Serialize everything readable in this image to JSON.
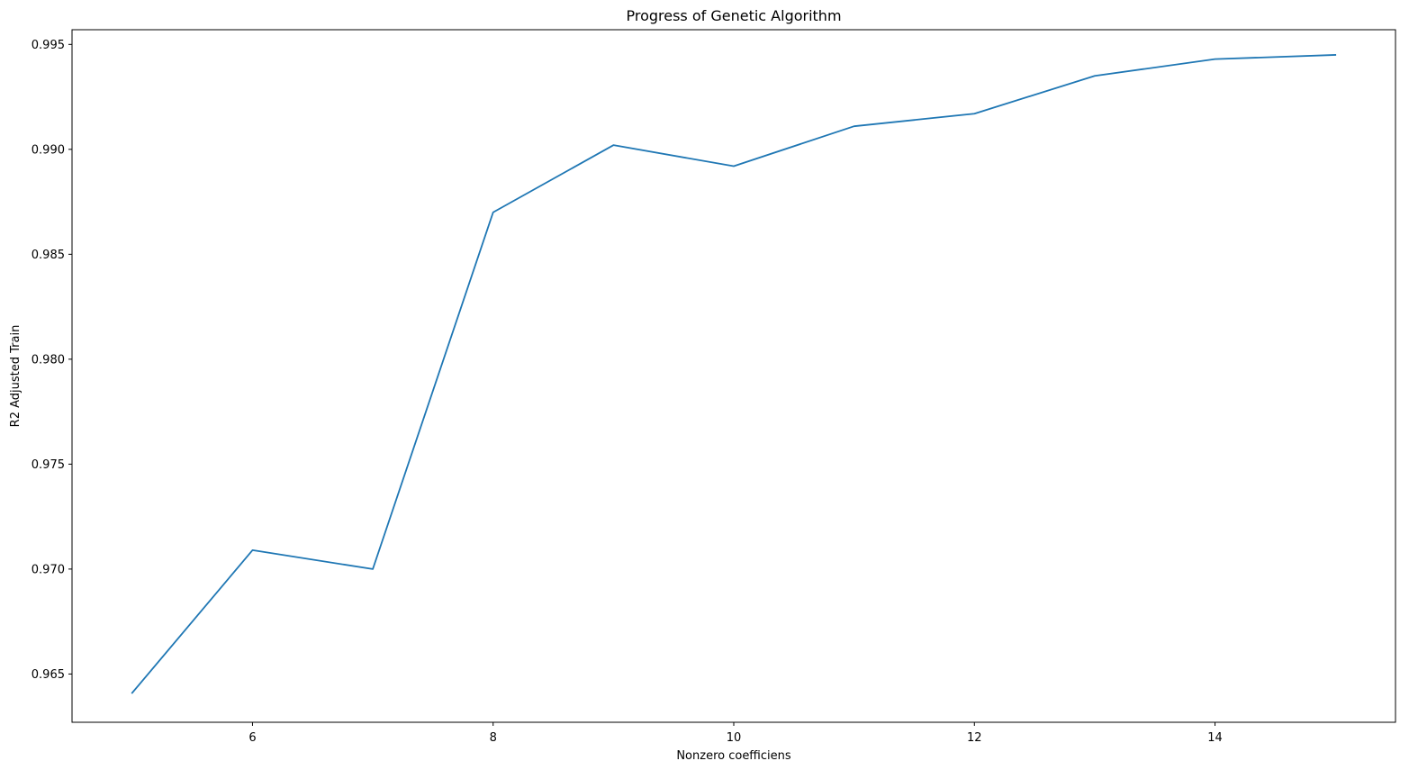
{
  "chart_data": {
    "type": "line",
    "title": "Progress of Genetic Algorithm",
    "xlabel": "Nonzero coefficiens",
    "ylabel": "R2 Adjusted Train",
    "xlim": [
      4.5,
      15.5
    ],
    "ylim": [
      0.9627,
      0.9957
    ],
    "xticks": [
      6,
      8,
      10,
      12,
      14
    ],
    "xtick_labels": [
      "6",
      "8",
      "10",
      "12",
      "14"
    ],
    "yticks": [
      0.965,
      0.97,
      0.975,
      0.98,
      0.985,
      0.99,
      0.995
    ],
    "ytick_labels": [
      "0.965",
      "0.970",
      "0.975",
      "0.980",
      "0.985",
      "0.990",
      "0.995"
    ],
    "grid": false,
    "legend": "none",
    "series": [
      {
        "color": "#1f77b4",
        "x": [
          5,
          6,
          7,
          8,
          9,
          10,
          11,
          12,
          13,
          14,
          15
        ],
        "y": [
          0.9641,
          0.9709,
          0.97,
          0.987,
          0.9902,
          0.9892,
          0.9911,
          0.9917,
          0.9935,
          0.9943,
          0.9945
        ]
      }
    ]
  }
}
